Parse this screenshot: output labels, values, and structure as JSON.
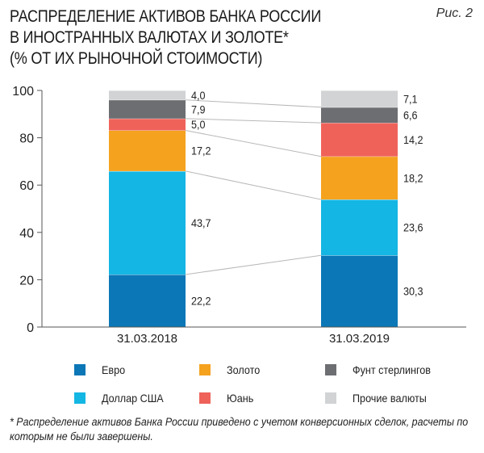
{
  "figure_label": "Рис. 2",
  "title_lines": [
    "РАСПРЕДЕЛЕНИЕ АКТИВОВ БАНКА РОССИИ",
    "В ИНОСТРАННЫХ ВАЛЮТАХ И ЗОЛОТЕ*",
    "(% ОТ ИХ РЫНОЧНОЙ СТОИМОСТИ)"
  ],
  "footnote_lines": [
    "* Распределение активов Банка России приведено с учетом конверсионных сделок, расчеты по",
    "которым не были завершены."
  ],
  "chart_data": {
    "type": "bar",
    "stacked": true,
    "title": "РАСПРЕДЕЛЕНИЕ АКТИВОВ БАНКА РОССИИ В ИНОСТРАННЫХ ВАЛЮТАХ И ЗОЛОТЕ* (% ОТ ИХ РЫНОЧНОЙ СТОИМОСТИ)",
    "categories": [
      "31.03.2018",
      "31.03.2019"
    ],
    "ylim": [
      0,
      100
    ],
    "yticks": [
      0,
      20,
      40,
      60,
      80,
      100
    ],
    "grid": false,
    "legend_position": "bottom",
    "series": [
      {
        "name": "Евро",
        "color": "#0b77b6",
        "values": [
          22.2,
          30.3
        ],
        "labels": [
          "22,2",
          "30,3"
        ]
      },
      {
        "name": "Доллар США",
        "color": "#14b6e3",
        "values": [
          43.7,
          23.6
        ],
        "labels": [
          "43,7",
          "23,6"
        ]
      },
      {
        "name": "Золото",
        "color": "#f5a21f",
        "values": [
          17.2,
          18.2
        ],
        "labels": [
          "17,2",
          "18,2"
        ]
      },
      {
        "name": "Юань",
        "color": "#ef625a",
        "values": [
          5.0,
          14.2
        ],
        "labels": [
          "5,0",
          "14,2"
        ]
      },
      {
        "name": "Фунт стерлингов",
        "color": "#6d6e71",
        "values": [
          7.9,
          6.6
        ],
        "labels": [
          "7,9",
          "6,6"
        ]
      },
      {
        "name": "Прочие валюты",
        "color": "#d1d3d4",
        "values": [
          4.0,
          7.1
        ],
        "labels": [
          "4,0",
          "7,1"
        ]
      }
    ],
    "legend_order": [
      "Евро",
      "Золото",
      "Фунт стерлингов",
      "Доллар США",
      "Юань",
      "Прочие валюты"
    ]
  }
}
